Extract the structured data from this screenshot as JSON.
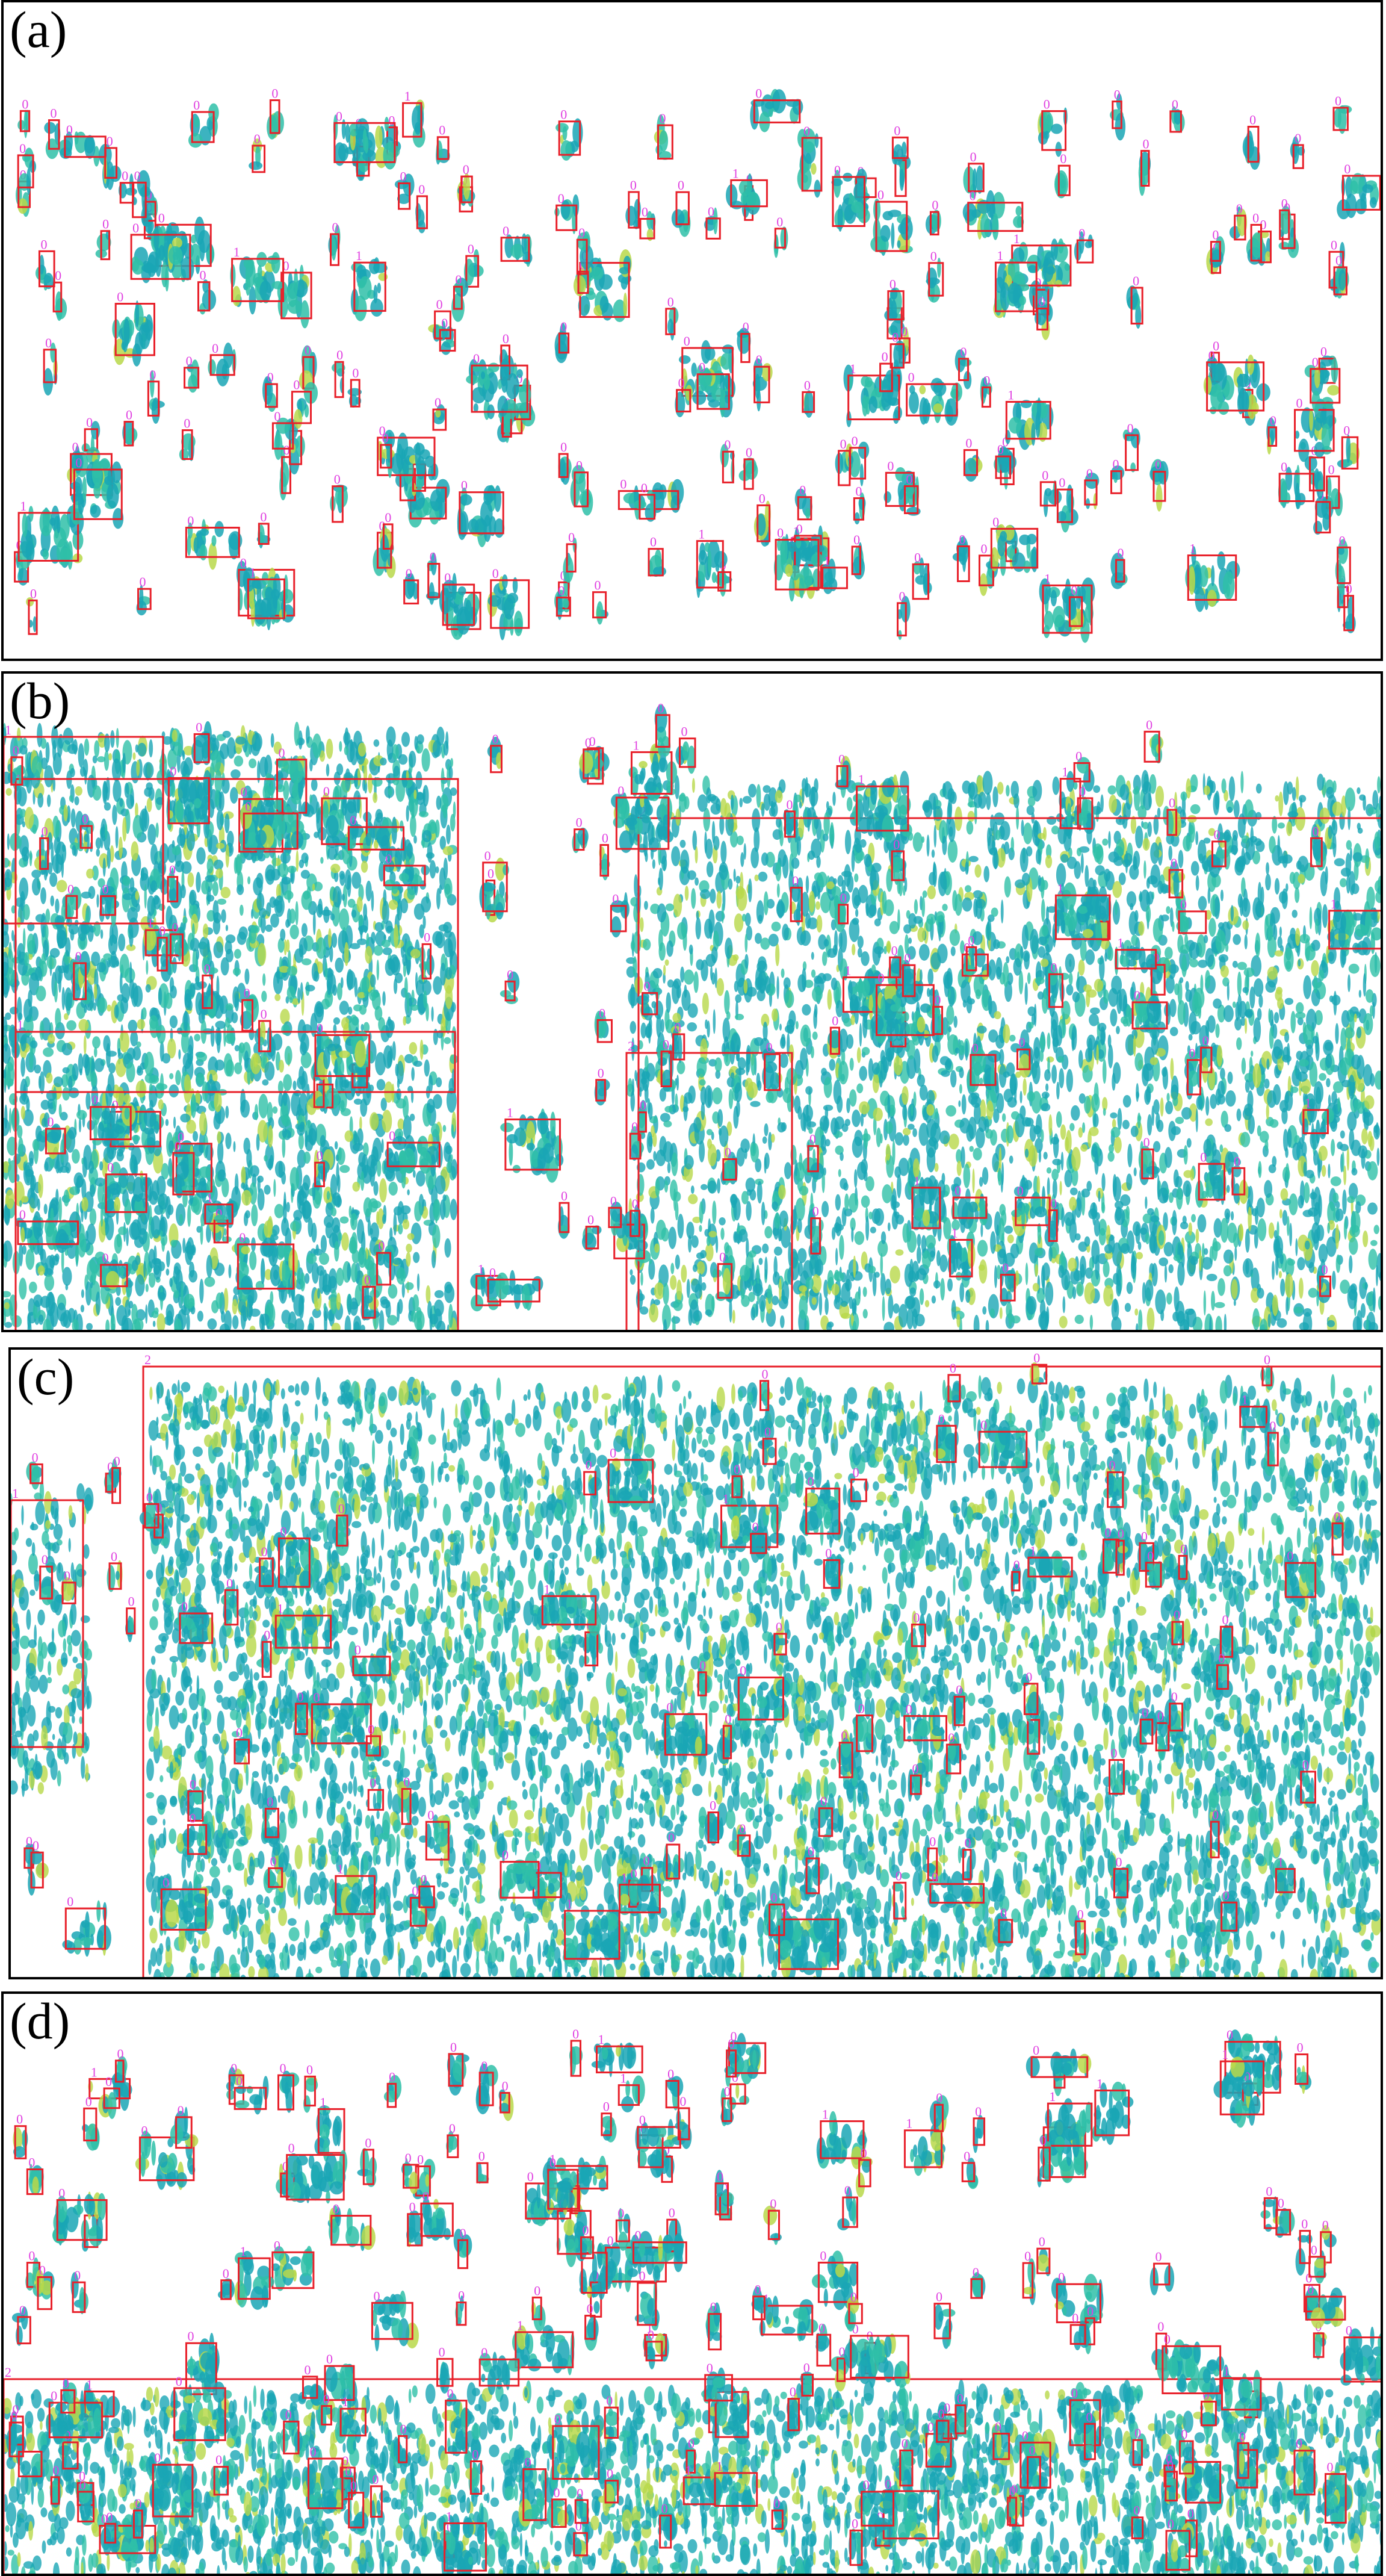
{
  "panels": [
    {
      "label": "(a)"
    },
    {
      "label": "(b)"
    },
    {
      "label": "(c)"
    },
    {
      "label": "(d)"
    }
  ],
  "colors": {
    "box": "#e8202a",
    "class_label": "#e040e0",
    "blob_dark": "#1aa6b5",
    "blob_mid": "#2fc0a8",
    "blob_light": "#b8d84a",
    "border": "#000000"
  },
  "class_labels": [
    "0",
    "1",
    "2"
  ]
}
